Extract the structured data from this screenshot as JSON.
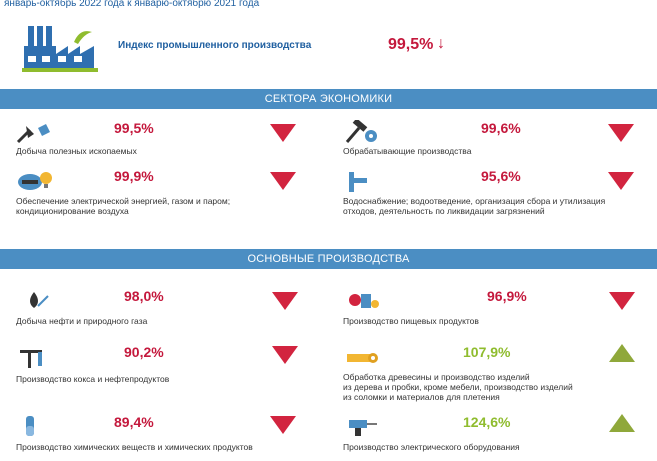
{
  "header": {
    "subtitle": "январь-октябрь 2022 года к январю-октябрю 2021 года",
    "headline_label": "Индекс промышленного производства",
    "headline_value": "99,5%",
    "headline_arrow": "↓"
  },
  "sections": [
    {
      "title": "СЕКТОРА ЭКОНОМИКИ",
      "items": [
        {
          "label": "Добыча полезных ископаемых",
          "value": "99,5%",
          "trend": "down",
          "icon": "mining-shovel-icon"
        },
        {
          "label": "Обрабатывающие производства",
          "value": "99,6%",
          "trend": "down",
          "icon": "hammer-gear-icon"
        },
        {
          "label": "Обеспечение электрической энергией, газом и паром;",
          "label2": "кондиционирование воздуха",
          "value": "99,9%",
          "trend": "down",
          "icon": "gas-bulb-icon"
        },
        {
          "label": "Водоснабжение; водоотведение, организация сбора и утилизация",
          "label2": "отходов, деятельность по ликвидации загрязнений",
          "value": "95,6%",
          "trend": "down",
          "icon": "water-pipe-icon"
        }
      ]
    },
    {
      "title": "ОСНОВНЫЕ ПРОИЗВОДСТВА",
      "items": [
        {
          "label": "Добыча нефти и природного газа",
          "value": "98,0%",
          "trend": "down",
          "icon": "oil-drop-icon"
        },
        {
          "label": "Производство пищевых продуктов",
          "value": "96,9%",
          "trend": "down",
          "icon": "food-icon"
        },
        {
          "label": "Производство кокса и нефтепродуктов",
          "value": "90,2%",
          "trend": "down",
          "icon": "oil-pump-icon"
        },
        {
          "label": "Обработка древесины и производство изделий",
          "label2": "из дерева и пробки, кроме мебели, производство изделий",
          "label3": "из соломки и материалов для плетения",
          "value": "107,9%",
          "trend": "up",
          "icon": "wood-log-icon"
        },
        {
          "label": "Производство химических веществ и химических продуктов",
          "value": "89,4%",
          "trend": "down",
          "icon": "chemical-flask-icon"
        },
        {
          "label": "Производство электрического оборудования",
          "value": "124,6%",
          "trend": "up",
          "icon": "electric-drill-icon"
        }
      ]
    }
  ]
}
